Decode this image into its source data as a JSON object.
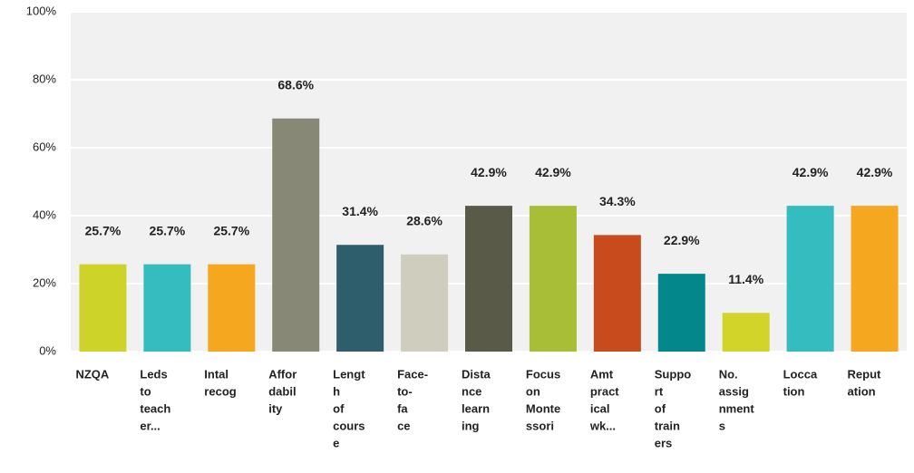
{
  "chart_data": {
    "type": "bar",
    "categories": [
      [
        "NZQA"
      ],
      [
        "Leds",
        "to",
        "teach",
        "er..."
      ],
      [
        "Intal",
        "recog"
      ],
      [
        "Affor",
        "dabil",
        "ity"
      ],
      [
        "Lengt",
        "h",
        "of",
        "cours",
        "e"
      ],
      [
        "Face-",
        "to-",
        "fa",
        "ce"
      ],
      [
        "Dista",
        "nce",
        "learn",
        "ing"
      ],
      [
        "Focus",
        "on",
        "Monte",
        "ssori"
      ],
      [
        "Amt",
        "pract",
        "ical",
        "wk..."
      ],
      [
        "Suppo",
        "rt",
        "of",
        "train",
        "ers"
      ],
      [
        "No.",
        "assig",
        "nment",
        "s"
      ],
      [
        "Locca",
        "tion"
      ],
      [
        "Reput",
        "ation"
      ]
    ],
    "values": [
      25.7,
      25.7,
      25.7,
      68.6,
      31.4,
      28.6,
      42.9,
      42.9,
      34.3,
      22.9,
      11.4,
      42.9,
      42.9
    ],
    "value_labels": [
      "25.7%",
      "25.7%",
      "25.7%",
      "68.6%",
      "31.4%",
      "28.6%",
      "42.9%",
      "42.9%",
      "34.3%",
      "22.9%",
      "11.4%",
      "42.9%",
      "42.9%"
    ],
    "colors": [
      "#cdd329",
      "#35bcbf",
      "#f5a81f",
      "#888877",
      "#2e5e6b",
      "#cfcdbd",
      "#5a5a48",
      "#a8be36",
      "#c84b1d",
      "#04878a",
      "#d2d42a",
      "#35bcbf",
      "#f5a81f"
    ],
    "ylim": [
      0,
      100
    ],
    "yticks": [
      {
        "value": 0,
        "label": "0%"
      },
      {
        "value": 20,
        "label": "20%"
      },
      {
        "value": 40,
        "label": "40%"
      },
      {
        "value": 60,
        "label": "60%"
      },
      {
        "value": 80,
        "label": "80%"
      },
      {
        "value": 100,
        "label": "100%"
      }
    ],
    "grid": true
  }
}
